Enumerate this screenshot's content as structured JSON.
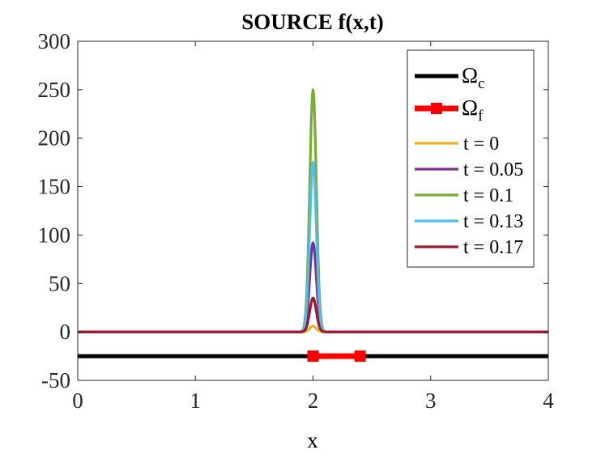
{
  "chart_data": {
    "type": "line",
    "title": "SOURCE f(x,t)",
    "xlabel": "x",
    "ylabel": "",
    "xlim": [
      0,
      4
    ],
    "ylim": [
      -50,
      300
    ],
    "xticks": [
      0,
      1,
      2,
      3,
      4
    ],
    "xtick_labels": [
      "0",
      "1",
      "2",
      "3",
      "4"
    ],
    "yticks": [
      -50,
      0,
      50,
      100,
      150,
      200,
      250,
      300
    ],
    "ytick_labels": [
      "-50",
      "0",
      "50",
      "100",
      "150",
      "200",
      "250",
      "300"
    ],
    "grid": false,
    "legend_position": "top-right",
    "pulse_center": 2,
    "pulse_width": 0.04,
    "domains": [
      {
        "name": "Ωc",
        "main": "Ω",
        "sub": "c",
        "x": [
          0,
          4
        ],
        "y": -25,
        "color": "#000000",
        "markers": false
      },
      {
        "name": "Ωf",
        "main": "Ω",
        "sub": "f",
        "x": [
          2,
          2.4
        ],
        "y": -25,
        "color": "#ff0000",
        "markers": true
      }
    ],
    "series": [
      {
        "name": "t = 0",
        "peak": 6,
        "color": "#EDB120"
      },
      {
        "name": "t = 0.05",
        "peak": 92,
        "color": "#7E2F8E"
      },
      {
        "name": "t = 0.1",
        "peak": 250,
        "color": "#77AC30"
      },
      {
        "name": "t = 0.13",
        "peak": 175,
        "color": "#4DBEEE"
      },
      {
        "name": "t = 0.17",
        "peak": 35,
        "color": "#A2142F"
      }
    ]
  }
}
